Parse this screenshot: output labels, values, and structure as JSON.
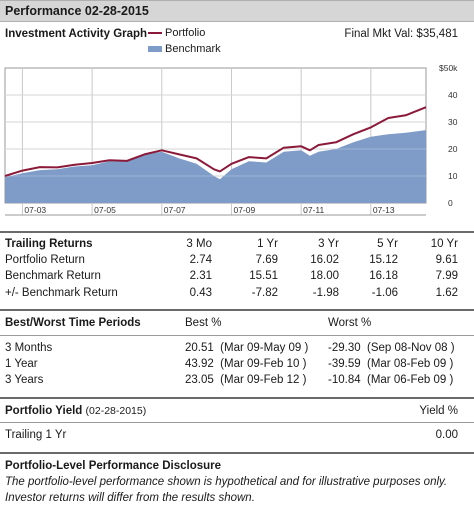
{
  "header": {
    "title": "Performance 02-28-2015"
  },
  "graph": {
    "title": "Investment Activity Graph",
    "final_mkt_val": "Final Mkt Val: $35,481",
    "legend": {
      "portfolio": "Portfolio",
      "benchmark": "Benchmark"
    },
    "colors": {
      "portfolio": "#8b1a3a",
      "benchmark": "#7f9cc8",
      "grid": "#c8c8c8"
    }
  },
  "chart_data": {
    "type": "area",
    "y_unit_label": "$50k",
    "y_ticks": [
      "40",
      "30",
      "20",
      "10",
      "0"
    ],
    "ylim": [
      0,
      50
    ],
    "x_ticks": [
      "07-03",
      "07-05",
      "07-07",
      "07-09",
      "07-11",
      "07-13"
    ],
    "xlim": [
      "2003-01",
      "2015-02"
    ],
    "series": [
      {
        "name": "Portfolio",
        "type": "line",
        "x": [
          "2003-01",
          "2003-07",
          "2004-01",
          "2004-07",
          "2005-01",
          "2005-07",
          "2006-01",
          "2006-07",
          "2007-01",
          "2007-07",
          "2008-01",
          "2008-07",
          "2009-01",
          "2009-03",
          "2009-07",
          "2010-01",
          "2010-07",
          "2011-01",
          "2011-07",
          "2011-10",
          "2012-01",
          "2012-07",
          "2013-01",
          "2013-07",
          "2014-01",
          "2014-07",
          "2015-02"
        ],
        "values": [
          10.0,
          12.0,
          13.3,
          13.2,
          14.2,
          14.8,
          15.8,
          15.6,
          18.0,
          19.5,
          18.0,
          16.5,
          12.5,
          11.7,
          14.5,
          17.0,
          16.5,
          20.5,
          21.0,
          19.5,
          21.5,
          22.5,
          25.5,
          28.0,
          31.5,
          32.5,
          35.5
        ]
      },
      {
        "name": "Benchmark",
        "type": "area",
        "x": [
          "2003-01",
          "2003-07",
          "2004-01",
          "2004-07",
          "2005-01",
          "2005-07",
          "2006-01",
          "2006-07",
          "2007-01",
          "2007-07",
          "2008-01",
          "2008-07",
          "2009-01",
          "2009-03",
          "2009-07",
          "2010-01",
          "2010-07",
          "2011-01",
          "2011-07",
          "2011-10",
          "2012-01",
          "2012-07",
          "2013-01",
          "2013-07",
          "2014-01",
          "2014-07",
          "2015-02"
        ],
        "values": [
          9.5,
          11.0,
          12.2,
          12.5,
          13.5,
          14.0,
          15.5,
          15.5,
          18.0,
          19.0,
          16.5,
          14.5,
          10.0,
          8.8,
          12.5,
          15.5,
          15.0,
          19.0,
          19.5,
          17.5,
          19.0,
          20.0,
          22.5,
          24.5,
          25.5,
          26.0,
          27.0
        ]
      }
    ]
  },
  "trailing": {
    "title": "Trailing Returns",
    "columns": [
      "3 Mo",
      "1 Yr",
      "3 Yr",
      "5 Yr",
      "10 Yr"
    ],
    "rows": [
      {
        "label": "Portfolio Return",
        "values": [
          "2.74",
          "7.69",
          "16.02",
          "15.12",
          "9.61"
        ]
      },
      {
        "label": "Benchmark Return",
        "values": [
          "2.31",
          "15.51",
          "18.00",
          "16.18",
          "7.99"
        ]
      },
      {
        "label": "+/- Benchmark Return",
        "values": [
          "0.43",
          "-7.82",
          "-1.98",
          "-1.06",
          "1.62"
        ]
      }
    ]
  },
  "bestworst": {
    "title": "Best/Worst Time Periods",
    "best_header": "Best %",
    "worst_header": "Worst %",
    "rows": [
      {
        "label": "3 Months",
        "best": "20.51  (Mar 09-May 09 )",
        "worst": "-29.30  (Sep 08-Nov 08 )"
      },
      {
        "label": "1 Year",
        "best": "43.92  (Mar 09-Feb 10 )",
        "worst": "-39.59  (Mar 08-Feb 09 )"
      },
      {
        "label": "3 Years",
        "best": "23.05  (Mar 09-Feb 12 )",
        "worst": "-10.84  (Mar 06-Feb 09 )"
      }
    ]
  },
  "yield": {
    "title": "Portfolio Yield",
    "date": "(02-28-2015)",
    "header": "Yield %",
    "row_label": "Trailing 1 Yr",
    "row_value": "0.00"
  },
  "disclosure": {
    "title": "Portfolio-Level Performance Disclosure",
    "line1": "The portfolio-level performance shown is hypothetical and for illustrative purposes only.",
    "line2": "Investor returns will differ from the results shown."
  }
}
